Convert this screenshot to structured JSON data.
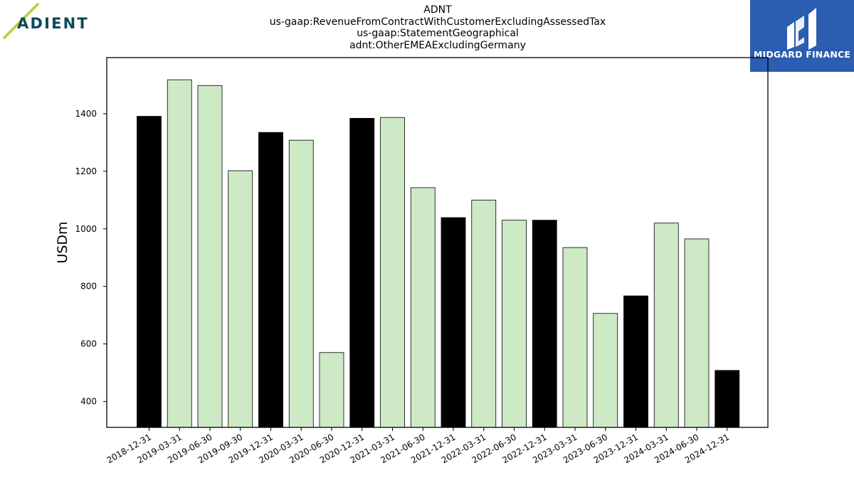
{
  "header": {
    "title_lines": [
      "ADNT",
      "us-gaap:RevenueFromContractWithCustomerExcludingAssessedTax",
      "us-gaap:StatementGeographical",
      "adnt:OtherEMEAExcludingGermany"
    ]
  },
  "logos": {
    "left": {
      "text": "ADIENT",
      "color": "#0b4a5a",
      "accent_color": "#b5cf3a"
    },
    "right": {
      "text": "MIDGARD FINANCE",
      "bg_color": "#2b5db0",
      "fg_color": "#ffffff"
    }
  },
  "chart_data": {
    "type": "bar",
    "title": "ADNT\nus-gaap:RevenueFromContractWithCustomerExcludingAssessedTax\nus-gaap:StatementGeographical\nadnt:OtherEMEAExcludingGermany",
    "xlabel": "",
    "ylabel": "USDm",
    "ylim": [
      310,
      1595
    ],
    "yticks": [
      400,
      600,
      800,
      1000,
      1200,
      1400
    ],
    "grid": false,
    "categories": [
      "2018-12-31",
      "2019-03-31",
      "2019-06-30",
      "2019-09-30",
      "2019-12-31",
      "2020-03-31",
      "2020-06-30",
      "2020-12-31",
      "2021-03-31",
      "2021-06-30",
      "2021-12-31",
      "2022-03-31",
      "2022-06-30",
      "2022-12-31",
      "2023-03-31",
      "2023-06-30",
      "2023-12-31",
      "2024-03-31",
      "2024-06-30",
      "2024-12-31"
    ],
    "values": [
      1391,
      1518,
      1498,
      1202,
      1335,
      1308,
      570,
      1384,
      1387,
      1143,
      1039,
      1100,
      1030,
      1030,
      935,
      706,
      767,
      1020,
      965,
      508
    ],
    "bar_colors": [
      "#000000",
      "#cde9c6",
      "#cde9c6",
      "#cde9c6",
      "#000000",
      "#cde9c6",
      "#cde9c6",
      "#000000",
      "#cde9c6",
      "#cde9c6",
      "#000000",
      "#cde9c6",
      "#cde9c6",
      "#000000",
      "#cde9c6",
      "#cde9c6",
      "#000000",
      "#cde9c6",
      "#cde9c6",
      "#000000"
    ]
  }
}
